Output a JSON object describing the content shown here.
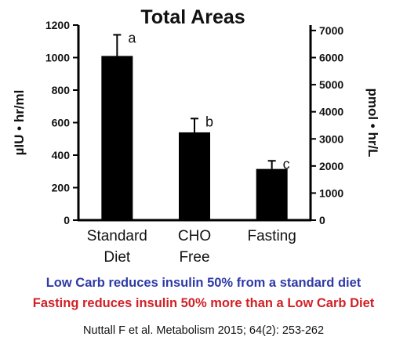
{
  "chart_data": {
    "type": "bar",
    "title": "Total Areas",
    "categories": [
      [
        "Standard",
        "Diet"
      ],
      [
        "CHO",
        "Free"
      ],
      [
        "Fasting"
      ]
    ],
    "values": [
      1010,
      540,
      315
    ],
    "error": [
      130,
      85,
      50
    ],
    "significance_labels": [
      "a",
      "b",
      "c"
    ],
    "ylabel": "µIU • hr/ml",
    "ylim": [
      0,
      1200
    ],
    "yticks": [
      0,
      200,
      400,
      600,
      800,
      1000,
      1200
    ],
    "y2label": "pmol • hr/L",
    "y2lim": [
      0,
      7200
    ],
    "y2ticks": [
      0,
      1000,
      2000,
      3000,
      4000,
      5000,
      6000,
      7000
    ],
    "grid": false,
    "colors": {
      "bar": "#000000",
      "axis": "#000000",
      "text": "#111111"
    }
  },
  "captions": {
    "line1": "Low Carb reduces insulin 50% from a standard diet",
    "line1_color": "#2e3aa6",
    "line2": "Fasting reduces insulin 50% more than a Low Carb Diet",
    "line2_color": "#d21f26"
  },
  "citation": "Nuttall F et al. Metabolism 2015; 64(2): 253-262"
}
